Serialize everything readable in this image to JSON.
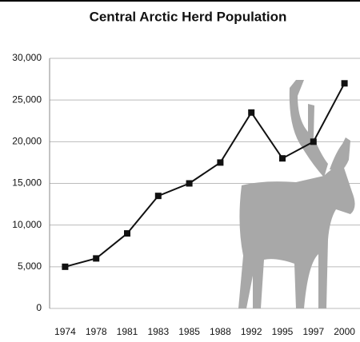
{
  "chart_data": {
    "type": "line",
    "title": "Central Arctic Herd Population",
    "categories": [
      "1974",
      "1978",
      "1981",
      "1983",
      "1985",
      "1988",
      "1992",
      "1995",
      "1997",
      "2000"
    ],
    "values": [
      5000,
      6000,
      9000,
      13500,
      15000,
      17500,
      23500,
      18000,
      20000,
      27000
    ],
    "color": "#111111",
    "ylim": [
      0,
      30000
    ],
    "yticks": [
      0,
      {
        "value": 5000,
        "label": "5,000"
      },
      {
        "value": 10000,
        "label": "10,000"
      },
      {
        "value": 15000,
        "label": "15,000"
      },
      {
        "value": 20000,
        "label": "20,000"
      },
      {
        "value": 25000,
        "label": "25,000"
      },
      {
        "value": 30000,
        "label": "30,000"
      }
    ],
    "grid": true
  }
}
